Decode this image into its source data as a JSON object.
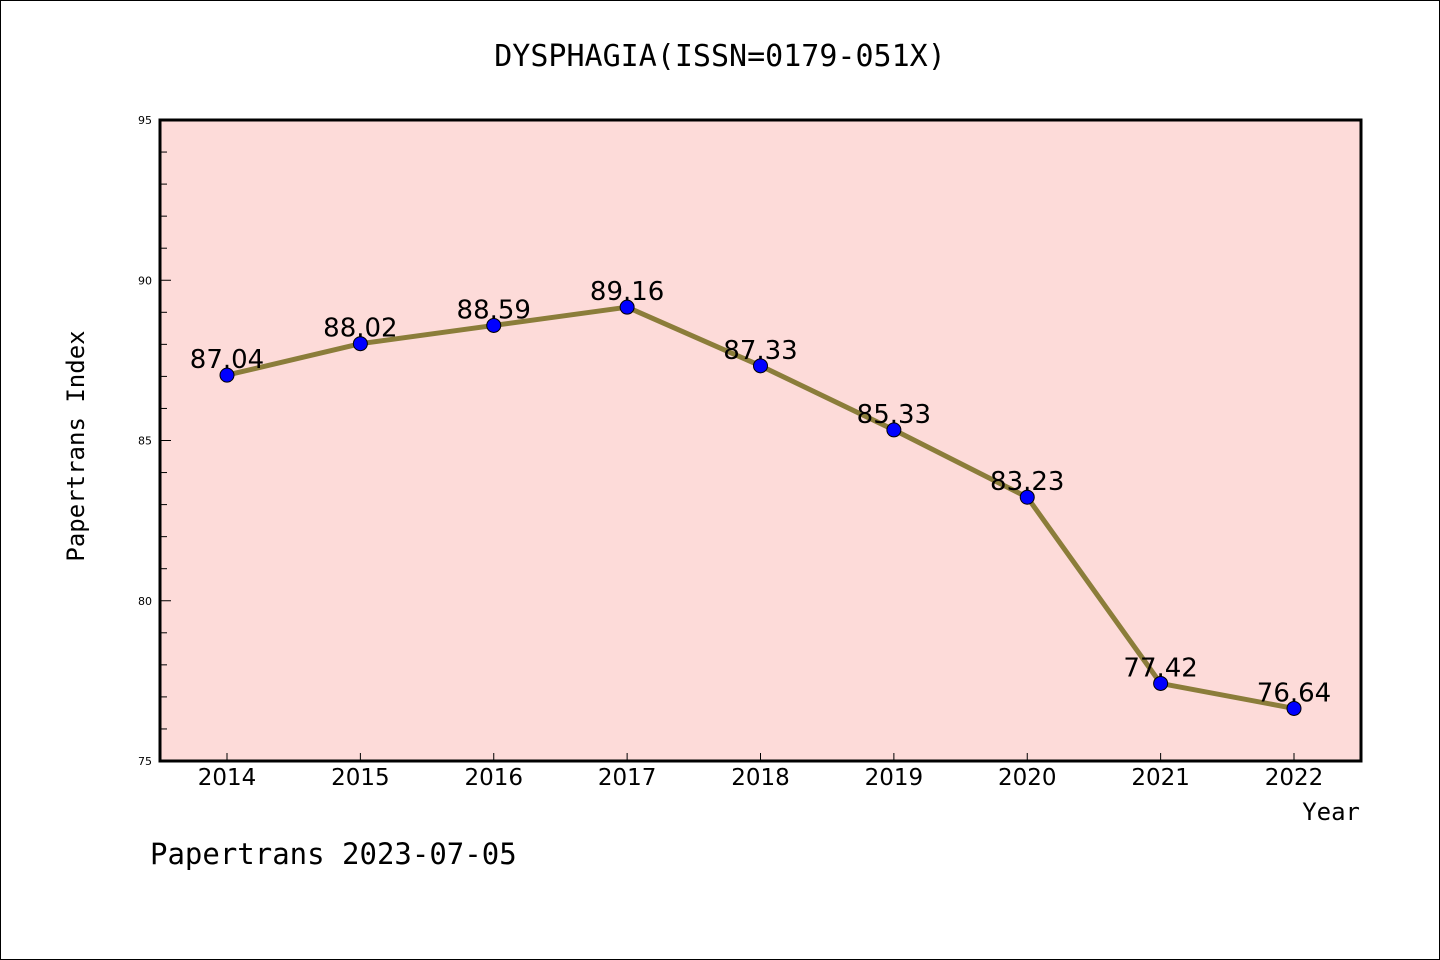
{
  "chart_data": {
    "type": "line",
    "title": "DYSPHAGIA(ISSN=0179-051X)",
    "xlabel": "Year",
    "ylabel": "Papertrans Index",
    "categories": [
      "2014",
      "2015",
      "2016",
      "2017",
      "2018",
      "2019",
      "2020",
      "2021",
      "2022"
    ],
    "series": [
      {
        "values": [
          87.04,
          88.02,
          88.59,
          89.16,
          87.33,
          85.33,
          83.23,
          77.42,
          76.64
        ],
        "labels": [
          "87.04",
          "88.02",
          "88.59",
          "89.16",
          "87.33",
          "85.33",
          "83.23",
          "77.42",
          "76.64"
        ]
      }
    ],
    "ylim": [
      75,
      95
    ],
    "yticks": [
      75,
      80,
      85,
      90,
      95
    ],
    "ytick_labels": [
      "75",
      "80",
      "85",
      "90",
      "95"
    ],
    "grid": false,
    "legend": "none",
    "colors": {
      "line": "#8b7d3a",
      "marker": "#0000ff",
      "plot_background": "#fddbd9",
      "axes": "#000000"
    }
  },
  "footer": "Papertrans 2023-07-05"
}
